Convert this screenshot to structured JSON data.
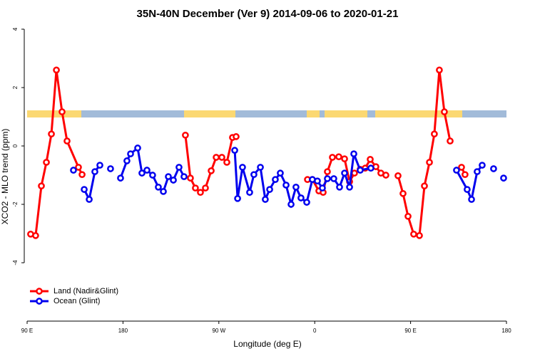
{
  "chart_data": {
    "type": "line",
    "title": "35N-40N December (Ver 9)   2014-09-06 to 2020-01-21",
    "x_label": "Longitude (deg E)",
    "y_label": "XCO2 - MLO trend (ppm)",
    "xlim": [
      90,
      540
    ],
    "ylim": [
      -6,
      4.3
    ],
    "xticks": [
      {
        "value": 90,
        "label": "90 E"
      },
      {
        "value": 180,
        "label": "180"
      },
      {
        "value": 270,
        "label": "90 W"
      },
      {
        "value": 360,
        "label": "0"
      },
      {
        "value": 450,
        "label": "90 E"
      },
      {
        "value": 540,
        "label": "180"
      }
    ],
    "yticks": [
      4,
      2,
      0,
      -2,
      -4
    ],
    "legend": "bottom-left",
    "series": [
      {
        "name": "Land (Nadir&Glint)",
        "color": "#ff0000",
        "x": [
          93.3,
          98,
          103.4,
          108.1,
          112.8,
          117.5,
          122.8,
          127.5,
          138.2,
          141.6,
          null,
          238.6,
          243.3,
          248,
          252.7,
          257.4,
          262.8,
          267.5,
          272.8,
          277.5,
          282.8,
          286.2,
          null,
          353.2,
          357.8,
          363.9,
          367.9,
          371.9,
          376.6,
          382.6,
          388,
          392.7,
          397.3,
          402.7,
          407.4,
          412.1,
          417.4,
          422.1,
          426.8,
          null,
          438.2,
          442.9,
          447.6,
          452.9,
          458.3,
          463,
          467.7,
          472.3,
          477,
          481.7,
          487.1,
          null,
          497.8,
          501.1
        ],
        "values": [
          -3.02,
          -3.07,
          -1.37,
          -0.56,
          0.41,
          2.6,
          1.17,
          0.17,
          -0.73,
          -0.98,
          null,
          0.37,
          -1.1,
          -1.44,
          -1.59,
          -1.44,
          -0.85,
          -0.39,
          -0.39,
          -0.56,
          0.29,
          0.32,
          null,
          -1.15,
          -1.15,
          -1.54,
          -1.59,
          -0.88,
          -0.39,
          -0.37,
          -0.44,
          -1.22,
          -0.93,
          -0.8,
          -0.76,
          -0.46,
          -0.71,
          -0.93,
          -1.0,
          null,
          -1.02,
          -1.63,
          -2.41,
          -3.02,
          -3.07,
          -1.37,
          -0.56,
          0.41,
          2.6,
          1.17,
          0.17,
          null,
          -0.73,
          -0.98
        ]
      },
      {
        "name": "Ocean (Glint)",
        "color": "#0000ee",
        "x": [
          133.5,
          null,
          143.6,
          148.3,
          153.6,
          158.3,
          null,
          168.3,
          null,
          177.7,
          183.7,
          187.1,
          193.8,
          197.8,
          202.5,
          207.8,
          213.2,
          217.9,
          222.6,
          227.3,
          232.6,
          237.3,
          null,
          284.9,
          287.6,
          292.2,
          298.9,
          302.9,
          309,
          313.6,
          317.7,
          323,
          327.7,
          333.1,
          337.8,
          342.4,
          347.1,
          352.5,
          357.8,
          362.5,
          367.2,
          371.9,
          377.9,
          383.3,
          388,
          392.7,
          396.7,
          402.7,
          412.7,
          null,
          493.1,
          503.1,
          507.2,
          512.5,
          517.2,
          null,
          527.9,
          null,
          537.3
        ],
        "values": [
          -0.83,
          null,
          -1.49,
          -1.83,
          -0.88,
          -0.66,
          null,
          -0.78,
          null,
          -1.1,
          -0.51,
          -0.27,
          -0.07,
          -0.93,
          -0.83,
          -1.0,
          -1.41,
          -1.56,
          -1.05,
          -1.17,
          -0.73,
          -1.05,
          null,
          -0.15,
          -1.8,
          -0.73,
          -1.59,
          -0.98,
          -0.73,
          -1.83,
          -1.49,
          -1.15,
          -0.93,
          -1.34,
          -2.0,
          -1.41,
          -1.78,
          -1.93,
          -1.15,
          -1.2,
          -1.44,
          -1.12,
          -1.12,
          -1.41,
          -0.93,
          -1.41,
          -0.27,
          -0.83,
          -0.76,
          null,
          -0.83,
          -1.49,
          -1.83,
          -0.88,
          -0.66,
          null,
          -0.78,
          null,
          -1.1
        ]
      }
    ]
  }
}
